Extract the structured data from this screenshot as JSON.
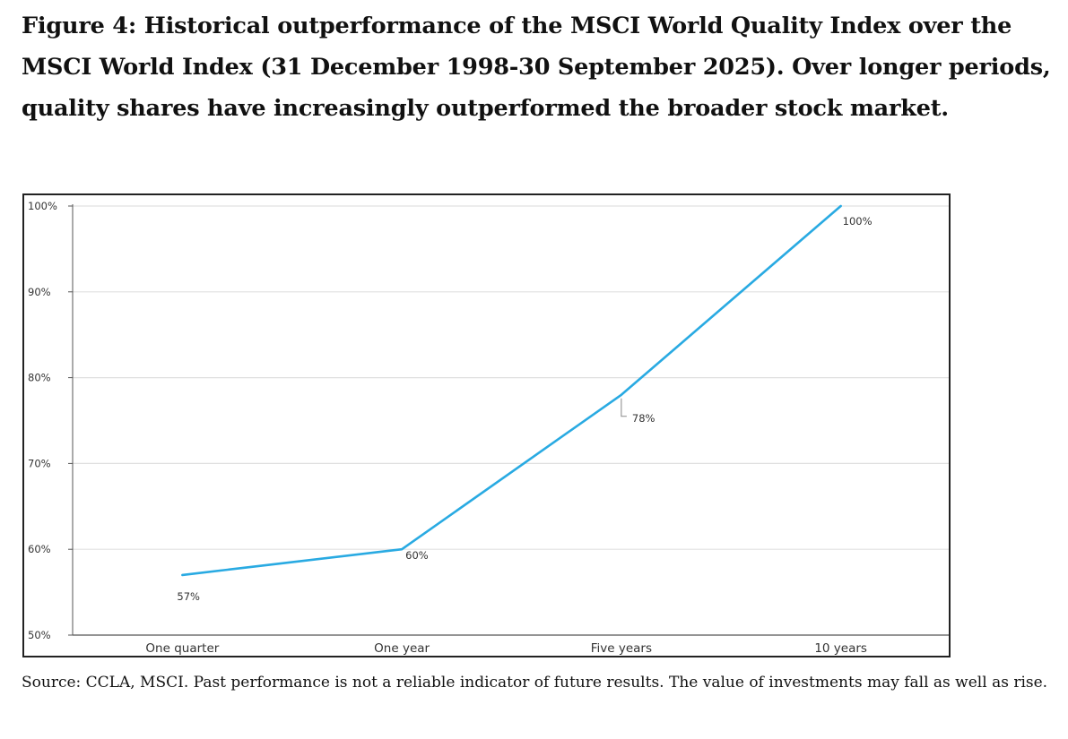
{
  "figure": {
    "title": "Figure 4: Historical outperformance of the MSCI World Quality Index over the MSCI World Index (31 December 1998-30 September 2025). Over longer periods, quality shares have increasingly outperformed the broader stock market.",
    "source": "Source: CCLA, MSCI. Past performance is not a reliable indicator of future results. The value of investments may fall as well as rise."
  },
  "chart_data": {
    "type": "line",
    "title": "",
    "xlabel": "",
    "ylabel": "",
    "categories": [
      "One quarter",
      "One year",
      "Five years",
      "10 years"
    ],
    "series": [
      {
        "values": [
          57,
          60,
          78,
          100
        ],
        "data_labels": [
          "57%",
          "60%",
          "78%",
          "100%"
        ]
      }
    ],
    "ylim": [
      50,
      100
    ],
    "yticks": [
      50,
      60,
      70,
      80,
      90,
      100
    ],
    "ytick_labels": [
      "50%",
      "60%",
      "70%",
      "80%",
      "90%",
      "100%"
    ],
    "grid": true,
    "legend": "none",
    "colors": {
      "line": "#29aae2",
      "grid": "#e0e0e0",
      "axis": "#555555"
    }
  }
}
